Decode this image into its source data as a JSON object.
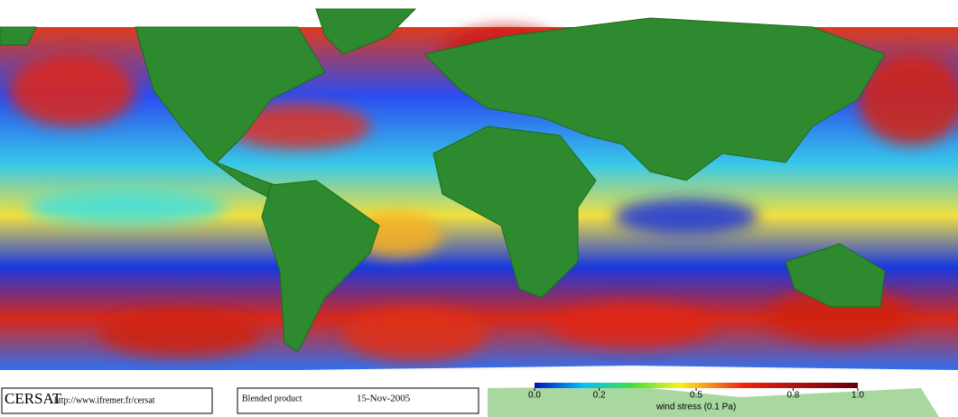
{
  "footer": {
    "logo": "CERSAT",
    "url": "http://www.ifremer.fr/cersat",
    "product": "Blended product",
    "date": "15-Nov-2005"
  },
  "colorbar": {
    "title": "wind stress (0.1 Pa)",
    "ticks": [
      {
        "value": 0,
        "label": "0.0"
      },
      {
        "value": 0.2,
        "label": "0.2"
      },
      {
        "value": 0.5,
        "label": "0.5"
      },
      {
        "value": 0.8,
        "label": "0.8"
      },
      {
        "value": 1,
        "label": "1.0"
      }
    ]
  }
}
